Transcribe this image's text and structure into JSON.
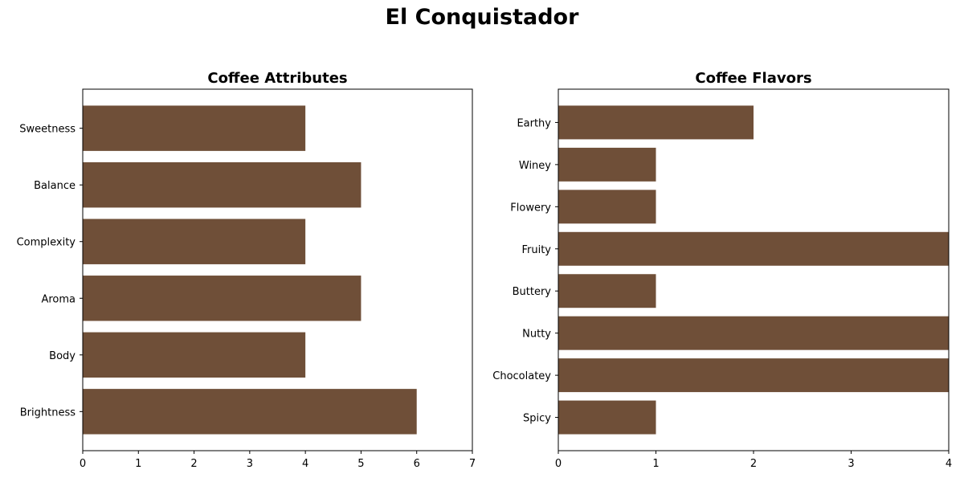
{
  "title": "El Conquistador",
  "bar_color": "#6f4f38",
  "chart_data": [
    {
      "type": "bar",
      "orientation": "horizontal",
      "title": "Coffee Attributes",
      "xlabel": "",
      "ylabel": "",
      "categories": [
        "Brightness",
        "Body",
        "Aroma",
        "Complexity",
        "Balance",
        "Sweetness"
      ],
      "values": [
        6,
        4,
        5,
        4,
        5,
        4
      ],
      "xlim": [
        0,
        7
      ],
      "xticks": [
        0,
        1,
        2,
        3,
        4,
        5,
        6,
        7
      ],
      "grid": false
    },
    {
      "type": "bar",
      "orientation": "horizontal",
      "title": "Coffee Flavors",
      "xlabel": "",
      "ylabel": "",
      "categories": [
        "Spicy",
        "Chocolatey",
        "Nutty",
        "Buttery",
        "Fruity",
        "Flowery",
        "Winey",
        "Earthy"
      ],
      "values": [
        1,
        4,
        4,
        1,
        4,
        1,
        1,
        2
      ],
      "xlim": [
        0,
        4
      ],
      "xticks": [
        0,
        1,
        2,
        3,
        4
      ],
      "grid": false
    }
  ]
}
